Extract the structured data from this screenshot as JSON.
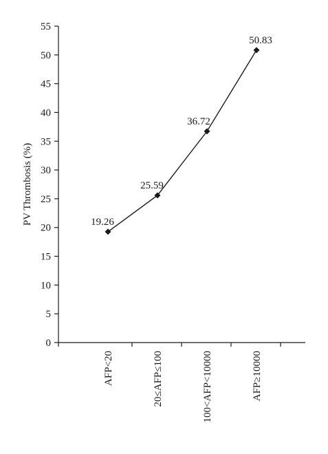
{
  "chart_data": {
    "type": "line",
    "title": "",
    "xlabel": "",
    "ylabel": "PV Thrombosis (%)",
    "ylim": [
      0,
      55
    ],
    "yticks": [
      0,
      5,
      10,
      15,
      20,
      25,
      30,
      35,
      40,
      45,
      50,
      55
    ],
    "categories": [
      "AFP<20",
      "20≤AFP≤100",
      "100<AFP<10000",
      "AFP≥10000"
    ],
    "values": [
      19.26,
      25.59,
      36.72,
      50.83
    ],
    "data_labels": [
      "19.26",
      "25.59",
      "36.72",
      "50.83"
    ],
    "grid": false,
    "legend": "none",
    "marker": "diamond",
    "line_color": "#1a1a1a"
  }
}
